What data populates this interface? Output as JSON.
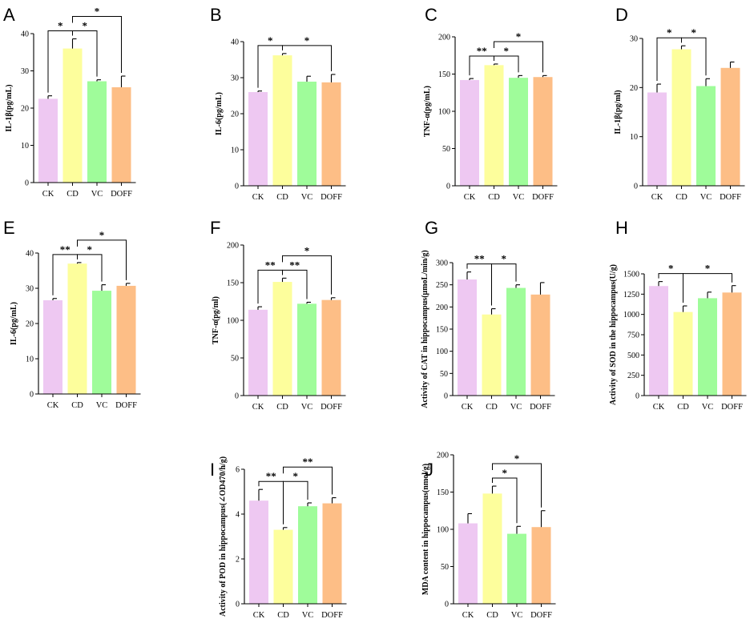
{
  "figure": {
    "colors": {
      "CK": "#EEC8F2",
      "CD": "#FDFE9C",
      "VC": "#9FFC9A",
      "DOFF": "#FDBE86"
    },
    "axis_color": "#000000"
  },
  "chart_data": [
    {
      "panel": "A",
      "type": "bar",
      "ylabel": "IL-1β(pg/mL)",
      "categories": [
        "CK",
        "CD",
        "VC",
        "DOFF"
      ],
      "values": [
        22.5,
        36,
        27.2,
        25.6
      ],
      "errors": [
        0.8,
        2.6,
        0.4,
        3.0
      ],
      "ylim": [
        0,
        40
      ],
      "yticks": [
        "0",
        "10",
        "20",
        "30",
        "40"
      ],
      "significance": [
        {
          "from": 0,
          "to": 1,
          "label": "*",
          "level": 0
        },
        {
          "from": 1,
          "to": 2,
          "label": "*",
          "level": 0
        },
        {
          "from": 1,
          "to": 3,
          "label": "*",
          "level": 1
        }
      ]
    },
    {
      "panel": "B",
      "type": "bar",
      "ylabel": "IL-6(pg/mL)",
      "categories": [
        "CK",
        "CD",
        "VC",
        "DOFF"
      ],
      "values": [
        26,
        36.2,
        28.9,
        28.7
      ],
      "errors": [
        0.3,
        0.5,
        1.5,
        2.2
      ],
      "ylim": [
        0,
        40
      ],
      "yticks": [
        "0",
        "10",
        "20",
        "30",
        "40"
      ],
      "significance": [
        {
          "from": 0,
          "to": 1,
          "label": "*",
          "level": 0
        },
        {
          "from": 1,
          "to": 3,
          "label": "*",
          "level": 0
        }
      ]
    },
    {
      "panel": "C",
      "type": "bar",
      "ylabel": "TNF-α(pg/mL)",
      "categories": [
        "CK",
        "CD",
        "VC",
        "DOFF"
      ],
      "values": [
        142,
        162,
        145,
        146
      ],
      "errors": [
        2,
        1.5,
        3,
        2
      ],
      "ylim": [
        0,
        200
      ],
      "yticks": [
        "0",
        "50",
        "100",
        "150",
        "200"
      ],
      "significance": [
        {
          "from": 0,
          "to": 1,
          "label": "**",
          "level": 0
        },
        {
          "from": 1,
          "to": 2,
          "label": "*",
          "level": 0
        },
        {
          "from": 1,
          "to": 3,
          "label": "*",
          "level": 1
        }
      ]
    },
    {
      "panel": "D",
      "type": "bar",
      "ylabel": "IL-1β(pg/ml)",
      "categories": [
        "CK",
        "CD",
        "VC",
        "DOFF"
      ],
      "values": [
        19,
        27.8,
        20.3,
        24
      ],
      "errors": [
        1.7,
        0.7,
        1.5,
        1.2
      ],
      "ylim": [
        0,
        30
      ],
      "yticks": [
        "0",
        "10",
        "20",
        "30"
      ],
      "significance": [
        {
          "from": 0,
          "to": 1,
          "label": "*",
          "level": 0
        },
        {
          "from": 1,
          "to": 2,
          "label": "*",
          "level": 0
        }
      ]
    },
    {
      "panel": "E",
      "type": "bar",
      "ylabel": "IL-6(pg/mL)",
      "categories": [
        "CK",
        "CD",
        "VC",
        "DOFF"
      ],
      "values": [
        26.6,
        37,
        29.3,
        30.7
      ],
      "errors": [
        0.5,
        0.3,
        1.7,
        0.7
      ],
      "ylim": [
        0,
        40
      ],
      "yticks": [
        "0",
        "10",
        "20",
        "30",
        "40"
      ],
      "significance": [
        {
          "from": 0,
          "to": 1,
          "label": "**",
          "level": 0
        },
        {
          "from": 1,
          "to": 2,
          "label": "*",
          "level": 0
        },
        {
          "from": 1,
          "to": 3,
          "label": "*",
          "level": 1
        }
      ]
    },
    {
      "panel": "F",
      "type": "bar",
      "ylabel": "TNF-α(pg/ml)",
      "categories": [
        "CK",
        "CD",
        "VC",
        "DOFF"
      ],
      "values": [
        114,
        151,
        122,
        127
      ],
      "errors": [
        4,
        5,
        2,
        3
      ],
      "ylim": [
        0,
        200
      ],
      "yticks": [
        "0",
        "50",
        "100",
        "150",
        "200"
      ],
      "significance": [
        {
          "from": 0,
          "to": 1,
          "label": "**",
          "level": 0
        },
        {
          "from": 1,
          "to": 2,
          "label": "**",
          "level": 0
        },
        {
          "from": 1,
          "to": 3,
          "label": "*",
          "level": 1
        }
      ]
    },
    {
      "panel": "G",
      "type": "bar",
      "ylabel": "Activity of CAT in hippocampus(μmoL/min/g)",
      "categories": [
        "CK",
        "CD",
        "VC",
        "DOFF"
      ],
      "values": [
        262,
        183,
        243,
        228
      ],
      "errors": [
        17,
        13,
        7,
        27
      ],
      "ylim": [
        0,
        300
      ],
      "yticks": [
        "0",
        "50",
        "100",
        "150",
        "200",
        "250",
        "300"
      ],
      "significance": [
        {
          "from": 0,
          "to": 1,
          "label": "**",
          "level": 0
        },
        {
          "from": 1,
          "to": 2,
          "label": "*",
          "level": 0
        }
      ]
    },
    {
      "panel": "H",
      "type": "bar",
      "ylabel": "Activity of SOD in the hippocampus(U/g)",
      "categories": [
        "CK",
        "CD",
        "VC",
        "DOFF"
      ],
      "values": [
        1350,
        1030,
        1200,
        1270
      ],
      "errors": [
        55,
        75,
        75,
        85
      ],
      "ylim": [
        0,
        1500
      ],
      "yticks": [
        "0",
        "250",
        "500",
        "750",
        "1000",
        "1250",
        "1500"
      ],
      "significance": [
        {
          "from": 0,
          "to": 1,
          "label": "*",
          "level": 0
        },
        {
          "from": 1,
          "to": 3,
          "label": "*",
          "level": 0
        }
      ]
    },
    {
      "panel": "I",
      "type": "bar",
      "ylabel": "Activity of POD in hippocampus(∠OD470/h/g)",
      "categories": [
        "CK",
        "CD",
        "VC",
        "DOFF"
      ],
      "values": [
        4.6,
        3.3,
        4.35,
        4.48
      ],
      "errors": [
        0.5,
        0.1,
        0.15,
        0.25
      ],
      "ylim": [
        0,
        6
      ],
      "yticks": [
        "0",
        "2",
        "4",
        "6"
      ],
      "significance": [
        {
          "from": 0,
          "to": 1,
          "label": "**",
          "level": 0
        },
        {
          "from": 1,
          "to": 2,
          "label": "*",
          "level": 0
        },
        {
          "from": 1,
          "to": 3,
          "label": "**",
          "level": 1
        }
      ]
    },
    {
      "panel": "J",
      "type": "bar",
      "ylabel": "MDA content in hippocampus(nmol/g)",
      "categories": [
        "CK",
        "CD",
        "VC",
        "DOFF"
      ],
      "values": [
        108,
        148,
        94,
        103
      ],
      "errors": [
        13,
        10,
        10,
        22
      ],
      "ylim": [
        0,
        200
      ],
      "yticks": [
        "0",
        "50",
        "100",
        "150",
        "200"
      ],
      "significance": [
        {
          "from": 1,
          "to": 2,
          "label": "*",
          "level": 0
        },
        {
          "from": 1,
          "to": 3,
          "label": "*",
          "level": 1
        }
      ]
    }
  ]
}
